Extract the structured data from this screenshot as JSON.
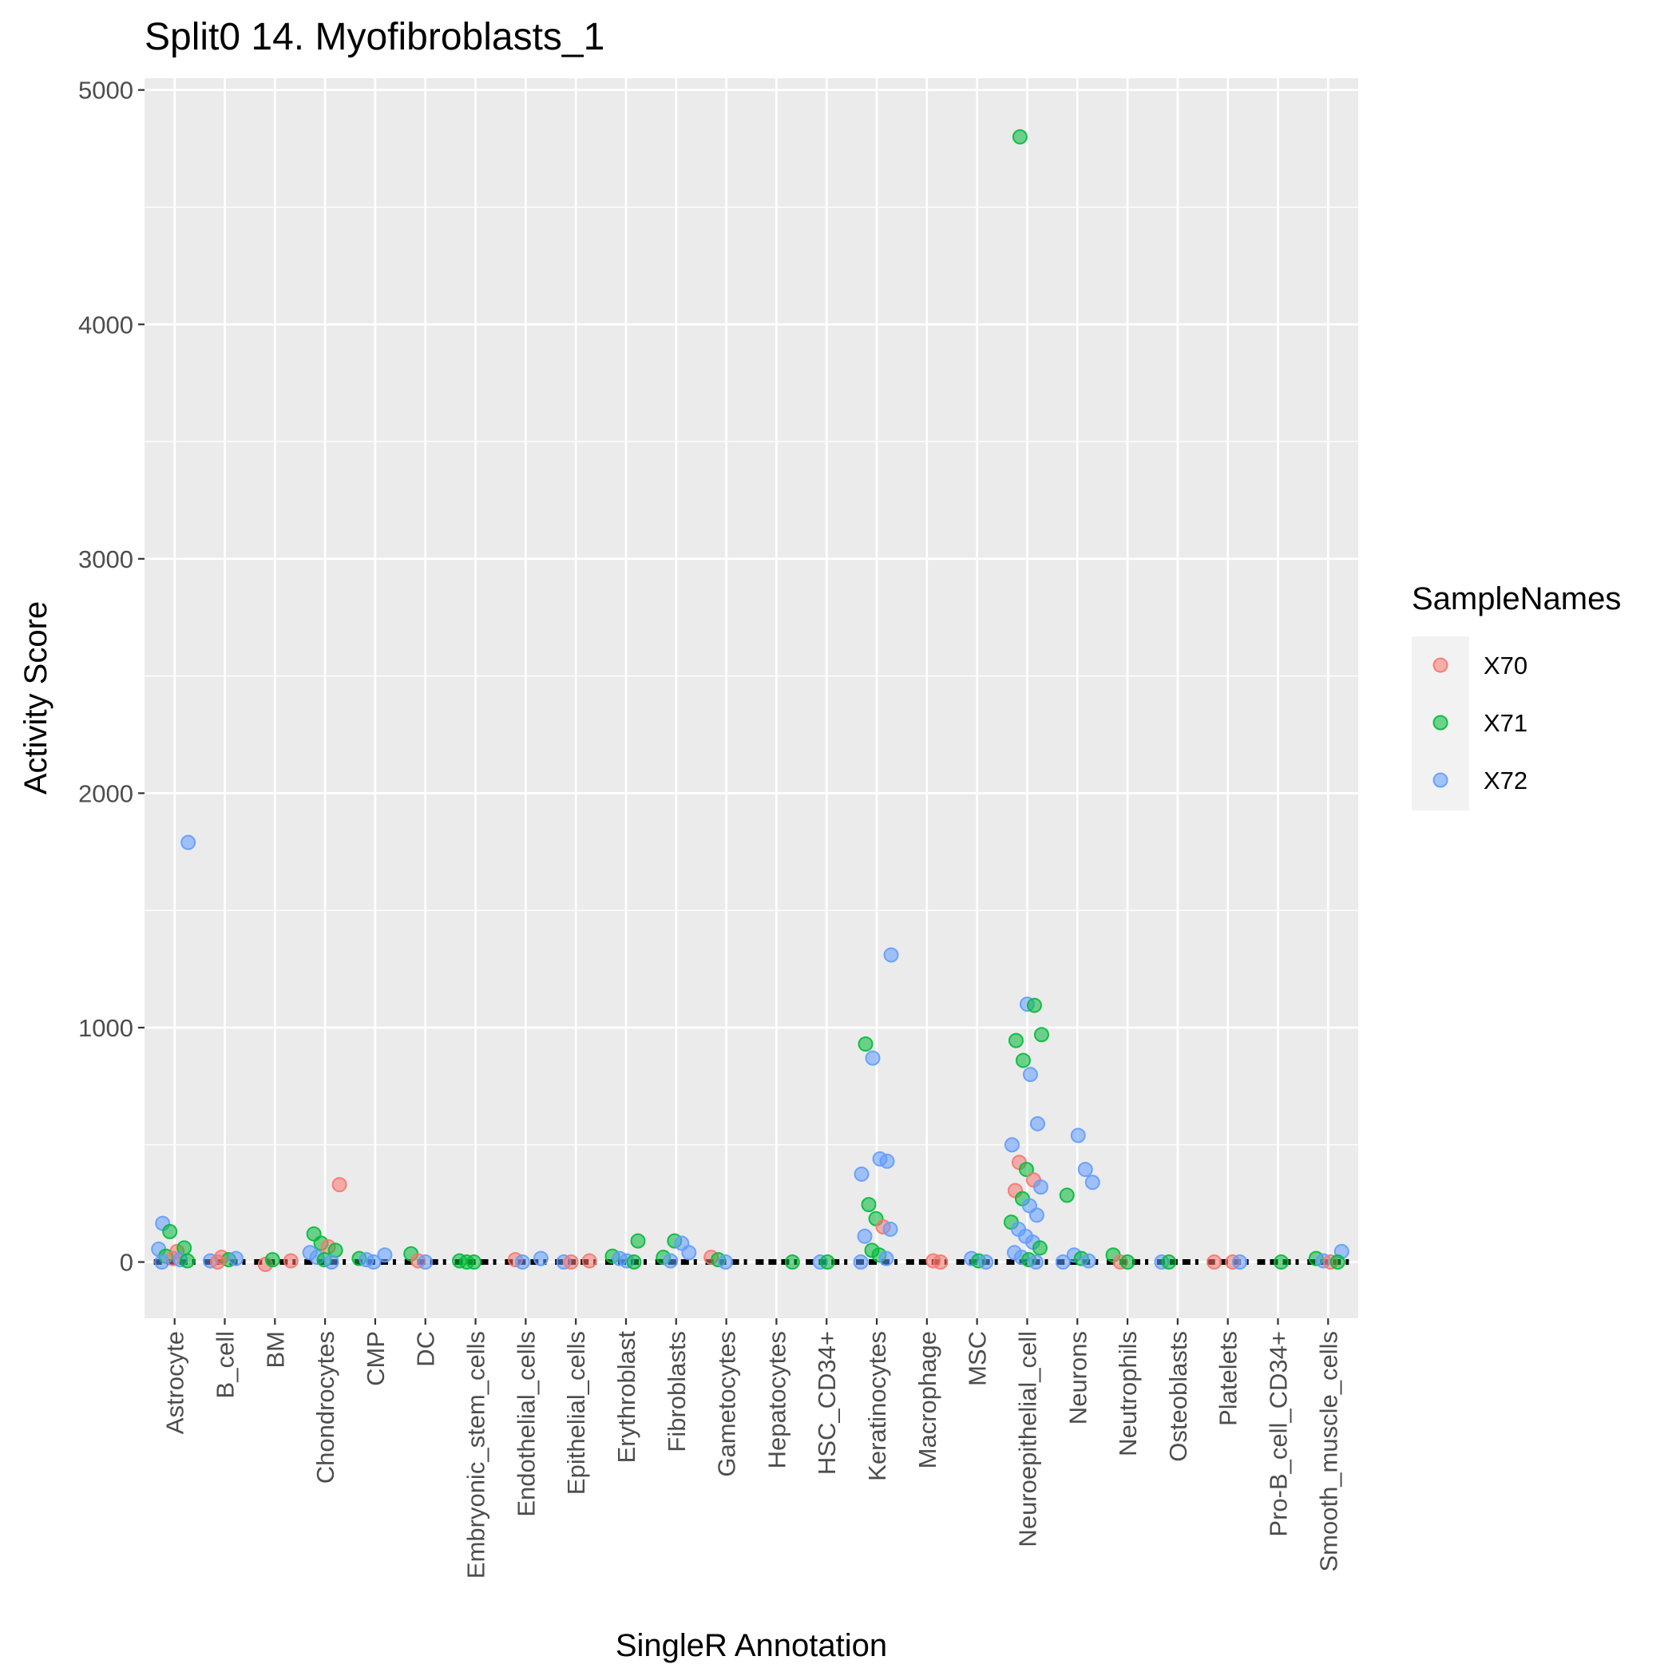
{
  "colors": {
    "panel_bg": "#EBEBEB",
    "grid": "#FFFFFF",
    "tick": "#333333",
    "X70": "#F8766D",
    "X71": "#00BA38",
    "X72": "#619CFF",
    "median_bar": "#000000"
  },
  "chart_data": {
    "type": "scatter",
    "title": "Split0 14. Myofibroblasts_1",
    "xlabel": "SingleR Annotation",
    "ylabel": "Activity Score",
    "ylim": [
      -240,
      5050
    ],
    "yticks": [
      0,
      1000,
      2000,
      3000,
      4000,
      5000
    ],
    "ytick_labels": [
      "0",
      "1000",
      "2000",
      "3000",
      "4000",
      "5000"
    ],
    "grid": true,
    "legend_position": "right",
    "legend_title": "SampleNames",
    "series_names": [
      "X70",
      "X71",
      "X72"
    ],
    "categories": [
      "Astrocyte",
      "B_cell",
      "BM",
      "Chondrocytes",
      "CMP",
      "DC",
      "Embryonic_stem_cells",
      "Endothelial_cells",
      "Epithelial_cells",
      "Erythroblast",
      "Fibroblasts",
      "Gametocytes",
      "Hepatocytes",
      "HSC_CD34+",
      "Keratinocytes",
      "Macrophage",
      "MSC",
      "Neuroepithelial_cell",
      "Neurons",
      "Neutrophils",
      "Osteoblasts",
      "Platelets",
      "Pro-B_cell_CD34+",
      "Smooth_muscle_cells"
    ],
    "points": [
      {
        "cat": "Astrocyte",
        "sample": "X72",
        "y": 1790
      },
      {
        "cat": "Astrocyte",
        "sample": "X72",
        "y": 165
      },
      {
        "cat": "Astrocyte",
        "sample": "X71",
        "y": 130
      },
      {
        "cat": "Astrocyte",
        "sample": "X70",
        "y": 45
      },
      {
        "cat": "Astrocyte",
        "sample": "X71",
        "y": 60
      },
      {
        "cat": "Astrocyte",
        "sample": "X72",
        "y": 55
      },
      {
        "cat": "Astrocyte",
        "sample": "X71",
        "y": 25
      },
      {
        "cat": "Astrocyte",
        "sample": "X70",
        "y": 15
      },
      {
        "cat": "Astrocyte",
        "sample": "X72",
        "y": 10
      },
      {
        "cat": "Astrocyte",
        "sample": "X71",
        "y": 5
      },
      {
        "cat": "Astrocyte",
        "sample": "X72",
        "y": 0
      },
      {
        "cat": "B_cell",
        "sample": "X70",
        "y": 20
      },
      {
        "cat": "B_cell",
        "sample": "X71",
        "y": 10
      },
      {
        "cat": "B_cell",
        "sample": "X72",
        "y": 15
      },
      {
        "cat": "B_cell",
        "sample": "X72",
        "y": 5
      },
      {
        "cat": "B_cell",
        "sample": "X70",
        "y": 0
      },
      {
        "cat": "BM",
        "sample": "X70",
        "y": 5
      },
      {
        "cat": "BM",
        "sample": "X70",
        "y": -10
      },
      {
        "cat": "BM",
        "sample": "X71",
        "y": 10
      },
      {
        "cat": "Chondrocytes",
        "sample": "X70",
        "y": 330
      },
      {
        "cat": "Chondrocytes",
        "sample": "X71",
        "y": 120
      },
      {
        "cat": "Chondrocytes",
        "sample": "X71",
        "y": 80
      },
      {
        "cat": "Chondrocytes",
        "sample": "X70",
        "y": 65
      },
      {
        "cat": "Chondrocytes",
        "sample": "X71",
        "y": 50
      },
      {
        "cat": "Chondrocytes",
        "sample": "X72",
        "y": 40
      },
      {
        "cat": "Chondrocytes",
        "sample": "X72",
        "y": 20
      },
      {
        "cat": "Chondrocytes",
        "sample": "X71",
        "y": 10
      },
      {
        "cat": "Chondrocytes",
        "sample": "X72",
        "y": 0
      },
      {
        "cat": "CMP",
        "sample": "X72",
        "y": 30
      },
      {
        "cat": "CMP",
        "sample": "X71",
        "y": 15
      },
      {
        "cat": "CMP",
        "sample": "X72",
        "y": 10
      },
      {
        "cat": "CMP",
        "sample": "X72",
        "y": 0
      },
      {
        "cat": "DC",
        "sample": "X71",
        "y": 35
      },
      {
        "cat": "DC",
        "sample": "X70",
        "y": 5
      },
      {
        "cat": "DC",
        "sample": "X72",
        "y": 0
      },
      {
        "cat": "Embryonic_stem_cells",
        "sample": "X71",
        "y": 5
      },
      {
        "cat": "Embryonic_stem_cells",
        "sample": "X71",
        "y": 0
      },
      {
        "cat": "Embryonic_stem_cells",
        "sample": "X71",
        "y": 0
      },
      {
        "cat": "Endothelial_cells",
        "sample": "X72",
        "y": 15
      },
      {
        "cat": "Endothelial_cells",
        "sample": "X70",
        "y": 10
      },
      {
        "cat": "Endothelial_cells",
        "sample": "X72",
        "y": 0
      },
      {
        "cat": "Epithelial_cells",
        "sample": "X70",
        "y": 5
      },
      {
        "cat": "Epithelial_cells",
        "sample": "X72",
        "y": 0
      },
      {
        "cat": "Epithelial_cells",
        "sample": "X70",
        "y": 0
      },
      {
        "cat": "Erythroblast",
        "sample": "X71",
        "y": 90
      },
      {
        "cat": "Erythroblast",
        "sample": "X71",
        "y": 25
      },
      {
        "cat": "Erythroblast",
        "sample": "X72",
        "y": 15
      },
      {
        "cat": "Erythroblast",
        "sample": "X72",
        "y": 5
      },
      {
        "cat": "Erythroblast",
        "sample": "X71",
        "y": 0
      },
      {
        "cat": "Fibroblasts",
        "sample": "X71",
        "y": 90
      },
      {
        "cat": "Fibroblasts",
        "sample": "X72",
        "y": 80
      },
      {
        "cat": "Fibroblasts",
        "sample": "X72",
        "y": 40
      },
      {
        "cat": "Fibroblasts",
        "sample": "X71",
        "y": 20
      },
      {
        "cat": "Fibroblasts",
        "sample": "X72",
        "y": 5
      },
      {
        "cat": "Gametocytes",
        "sample": "X70",
        "y": 20
      },
      {
        "cat": "Gametocytes",
        "sample": "X71",
        "y": 10
      },
      {
        "cat": "Gametocytes",
        "sample": "X72",
        "y": 0
      },
      {
        "cat": "Hepatocytes",
        "sample": "X71",
        "y": 0
      },
      {
        "cat": "HSC_CD34+",
        "sample": "X72",
        "y": 0
      },
      {
        "cat": "HSC_CD34+",
        "sample": "X71",
        "y": 0
      },
      {
        "cat": "Keratinocytes",
        "sample": "X72",
        "y": 1310
      },
      {
        "cat": "Keratinocytes",
        "sample": "X71",
        "y": 930
      },
      {
        "cat": "Keratinocytes",
        "sample": "X72",
        "y": 870
      },
      {
        "cat": "Keratinocytes",
        "sample": "X72",
        "y": 440
      },
      {
        "cat": "Keratinocytes",
        "sample": "X72",
        "y": 430
      },
      {
        "cat": "Keratinocytes",
        "sample": "X72",
        "y": 375
      },
      {
        "cat": "Keratinocytes",
        "sample": "X71",
        "y": 245
      },
      {
        "cat": "Keratinocytes",
        "sample": "X71",
        "y": 185
      },
      {
        "cat": "Keratinocytes",
        "sample": "X70",
        "y": 150
      },
      {
        "cat": "Keratinocytes",
        "sample": "X72",
        "y": 140
      },
      {
        "cat": "Keratinocytes",
        "sample": "X72",
        "y": 110
      },
      {
        "cat": "Keratinocytes",
        "sample": "X71",
        "y": 50
      },
      {
        "cat": "Keratinocytes",
        "sample": "X71",
        "y": 30
      },
      {
        "cat": "Keratinocytes",
        "sample": "X72",
        "y": 15
      },
      {
        "cat": "Keratinocytes",
        "sample": "X72",
        "y": 0
      },
      {
        "cat": "Macrophage",
        "sample": "X70",
        "y": 5
      },
      {
        "cat": "Macrophage",
        "sample": "X70",
        "y": 0
      },
      {
        "cat": "MSC",
        "sample": "X72",
        "y": 15
      },
      {
        "cat": "MSC",
        "sample": "X71",
        "y": 5
      },
      {
        "cat": "MSC",
        "sample": "X72",
        "y": 0
      },
      {
        "cat": "Neuroepithelial_cell",
        "sample": "X71",
        "y": 4800
      },
      {
        "cat": "Neuroepithelial_cell",
        "sample": "X72",
        "y": 1100
      },
      {
        "cat": "Neuroepithelial_cell",
        "sample": "X71",
        "y": 1095
      },
      {
        "cat": "Neuroepithelial_cell",
        "sample": "X71",
        "y": 970
      },
      {
        "cat": "Neuroepithelial_cell",
        "sample": "X71",
        "y": 945
      },
      {
        "cat": "Neuroepithelial_cell",
        "sample": "X71",
        "y": 860
      },
      {
        "cat": "Neuroepithelial_cell",
        "sample": "X72",
        "y": 800
      },
      {
        "cat": "Neuroepithelial_cell",
        "sample": "X72",
        "y": 590
      },
      {
        "cat": "Neuroepithelial_cell",
        "sample": "X72",
        "y": 500
      },
      {
        "cat": "Neuroepithelial_cell",
        "sample": "X70",
        "y": 425
      },
      {
        "cat": "Neuroepithelial_cell",
        "sample": "X71",
        "y": 395
      },
      {
        "cat": "Neuroepithelial_cell",
        "sample": "X70",
        "y": 350
      },
      {
        "cat": "Neuroepithelial_cell",
        "sample": "X72",
        "y": 320
      },
      {
        "cat": "Neuroepithelial_cell",
        "sample": "X70",
        "y": 305
      },
      {
        "cat": "Neuroepithelial_cell",
        "sample": "X71",
        "y": 270
      },
      {
        "cat": "Neuroepithelial_cell",
        "sample": "X72",
        "y": 240
      },
      {
        "cat": "Neuroepithelial_cell",
        "sample": "X72",
        "y": 200
      },
      {
        "cat": "Neuroepithelial_cell",
        "sample": "X71",
        "y": 170
      },
      {
        "cat": "Neuroepithelial_cell",
        "sample": "X72",
        "y": 140
      },
      {
        "cat": "Neuroepithelial_cell",
        "sample": "X72",
        "y": 110
      },
      {
        "cat": "Neuroepithelial_cell",
        "sample": "X72",
        "y": 85
      },
      {
        "cat": "Neuroepithelial_cell",
        "sample": "X71",
        "y": 60
      },
      {
        "cat": "Neuroepithelial_cell",
        "sample": "X72",
        "y": 40
      },
      {
        "cat": "Neuroepithelial_cell",
        "sample": "X72",
        "y": 20
      },
      {
        "cat": "Neuroepithelial_cell",
        "sample": "X71",
        "y": 10
      },
      {
        "cat": "Neuroepithelial_cell",
        "sample": "X72",
        "y": 0
      },
      {
        "cat": "Neurons",
        "sample": "X72",
        "y": 540
      },
      {
        "cat": "Neurons",
        "sample": "X72",
        "y": 395
      },
      {
        "cat": "Neurons",
        "sample": "X72",
        "y": 340
      },
      {
        "cat": "Neurons",
        "sample": "X71",
        "y": 285
      },
      {
        "cat": "Neurons",
        "sample": "X72",
        "y": 30
      },
      {
        "cat": "Neurons",
        "sample": "X71",
        "y": 15
      },
      {
        "cat": "Neurons",
        "sample": "X72",
        "y": 5
      },
      {
        "cat": "Neurons",
        "sample": "X72",
        "y": 0
      },
      {
        "cat": "Neutrophils",
        "sample": "X71",
        "y": 30
      },
      {
        "cat": "Neutrophils",
        "sample": "X70",
        "y": 0
      },
      {
        "cat": "Neutrophils",
        "sample": "X71",
        "y": 0
      },
      {
        "cat": "Osteoblasts",
        "sample": "X72",
        "y": 0
      },
      {
        "cat": "Osteoblasts",
        "sample": "X71",
        "y": 0
      },
      {
        "cat": "Platelets",
        "sample": "X70",
        "y": 0
      },
      {
        "cat": "Platelets",
        "sample": "X72",
        "y": 0
      },
      {
        "cat": "Platelets",
        "sample": "X70",
        "y": 0
      },
      {
        "cat": "Pro-B_cell_CD34+",
        "sample": "X71",
        "y": 0
      },
      {
        "cat": "Smooth_muscle_cells",
        "sample": "X72",
        "y": 45
      },
      {
        "cat": "Smooth_muscle_cells",
        "sample": "X71",
        "y": 15
      },
      {
        "cat": "Smooth_muscle_cells",
        "sample": "X72",
        "y": 5
      },
      {
        "cat": "Smooth_muscle_cells",
        "sample": "X70",
        "y": 0
      },
      {
        "cat": "Smooth_muscle_cells",
        "sample": "X71",
        "y": 0
      }
    ]
  }
}
